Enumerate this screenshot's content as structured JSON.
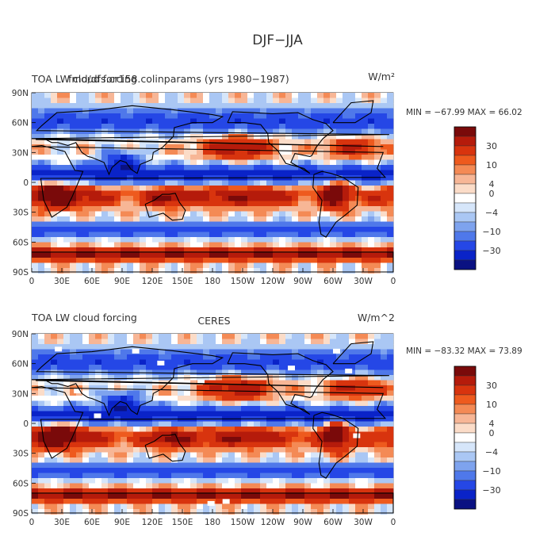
{
  "figure": {
    "title": "DJF−JJA"
  },
  "panels": [
    {
      "name": "model",
      "title_left": "TOA LW cloud forcing",
      "title_overlap": "fmd/dfs.cr158.colinparams (yrs 1980−1987)",
      "title_right": "W/m²",
      "stats": "MIN = −67.99  MAX =  66.02",
      "missing_data": false
    },
    {
      "name": "ceres",
      "title_left": "TOA LW cloud forcing",
      "title_center": "CERES",
      "title_right": "W/m^2",
      "stats": "MIN = −83.32  MAX =  73.89",
      "missing_data": true
    }
  ],
  "axes": {
    "lat_labels": [
      "90N",
      "60N",
      "30N",
      "0",
      "30S",
      "60S",
      "90S"
    ],
    "lon_labels": [
      "0",
      "30E",
      "60E",
      "90E",
      "120E",
      "150E",
      "180",
      "150W",
      "120W",
      "90W",
      "60W",
      "30W",
      "0"
    ]
  },
  "colorbar": {
    "labels": [
      "30",
      "10",
      "4",
      "0",
      "−4",
      "−10",
      "−30"
    ],
    "colors": [
      "#7a0a0a",
      "#b51b0b",
      "#d8340e",
      "#ee5a1e",
      "#f48a55",
      "#f7b696",
      "#fbdcc8",
      "#ffffff",
      "#d6e6fa",
      "#aac7f4",
      "#7ea3ee",
      "#4f78ea",
      "#2547e6",
      "#0a23c8",
      "#0a1182"
    ]
  },
  "colors": {
    "land": "#000000",
    "missing": "#ffffff"
  },
  "chart_data": {
    "type": "heatmap",
    "title": "DJF−JJA",
    "variable": "TOA LW cloud forcing",
    "units": "W/m²",
    "x": "longitude 0 → 360 (0, 30E … 180 … 30W, 0)",
    "y": "latitude 90S → 90N",
    "levels": [
      -30,
      -10,
      -4,
      0,
      4,
      10,
      30
    ],
    "panels": [
      {
        "label": "fmd/dfs.cr158.colinparams (yrs 1980−1987)",
        "min": -67.99,
        "max": 66.02
      },
      {
        "label": "CERES",
        "min": -83.32,
        "max": 73.89
      }
    ]
  }
}
